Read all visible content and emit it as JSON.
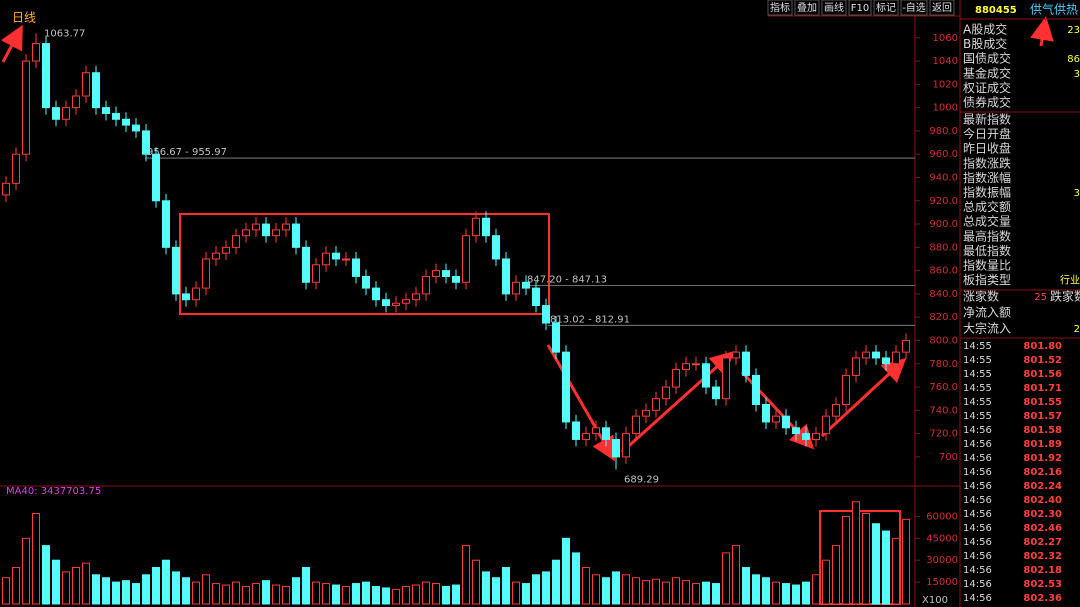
{
  "chart_data": [
    {
      "type": "candlestick",
      "period_label": "日线",
      "open": [
        925,
        935,
        960,
        1040,
        1055,
        1000,
        990,
        1000,
        1010,
        1030,
        1000,
        995,
        990,
        985,
        980,
        960,
        920,
        880,
        840,
        835,
        845,
        870,
        875,
        880,
        890,
        895,
        900,
        890,
        895,
        900,
        880,
        850,
        865,
        875,
        870,
        870,
        855,
        845,
        835,
        830,
        832,
        835,
        840,
        855,
        860,
        855,
        850,
        890,
        905,
        890,
        870,
        840,
        850,
        845,
        830,
        815,
        790,
        730,
        715,
        720,
        725,
        715,
        700,
        720,
        735,
        740,
        750,
        760,
        775,
        780,
        780,
        760,
        750,
        785,
        790,
        770,
        745,
        730,
        735,
        725,
        720,
        715,
        720,
        735,
        745,
        770,
        785,
        790,
        785,
        780,
        790
      ],
      "high": [
        941,
        966,
        1046,
        1063.77,
        1061,
        1006,
        1006,
        1016,
        1036,
        1036,
        1006,
        1001,
        996,
        991,
        986,
        966,
        926,
        886,
        846,
        851,
        876,
        881,
        886,
        896,
        901,
        906,
        906,
        901,
        906,
        906,
        886,
        871,
        881,
        881,
        876,
        876,
        861,
        851,
        841,
        838,
        841,
        846,
        861,
        866,
        866,
        861,
        896,
        911,
        911,
        896,
        876,
        856,
        856,
        851,
        836,
        821,
        796,
        736,
        726,
        731,
        731,
        721,
        726,
        741,
        746,
        756,
        766,
        781,
        786,
        786,
        786,
        766,
        791,
        796,
        796,
        776,
        751,
        741,
        741,
        731,
        726,
        726,
        741,
        751,
        776,
        791,
        796,
        796,
        791,
        796,
        806
      ],
      "low": [
        919,
        929,
        954,
        1034,
        994,
        984,
        984,
        994,
        1004,
        994,
        989,
        984,
        979,
        974,
        954,
        914,
        874,
        834,
        829,
        829,
        839,
        864,
        869,
        874,
        884,
        889,
        884,
        884,
        889,
        874,
        844,
        844,
        859,
        864,
        864,
        849,
        839,
        829,
        824,
        824,
        826,
        829,
        834,
        849,
        849,
        844,
        844,
        884,
        884,
        864,
        834,
        834,
        839,
        824,
        809,
        784,
        724,
        709,
        709,
        714,
        709,
        689.29,
        694,
        714,
        729,
        734,
        744,
        754,
        769,
        774,
        754,
        744,
        744,
        779,
        764,
        739,
        724,
        724,
        719,
        714,
        709,
        709,
        714,
        729,
        739,
        764,
        779,
        779,
        774,
        774,
        784
      ],
      "close": [
        935,
        960,
        1040,
        1055,
        1000,
        990,
        1000,
        1010,
        1030,
        1000,
        995,
        990,
        985,
        980,
        960,
        920,
        880,
        840,
        835,
        845,
        870,
        875,
        880,
        890,
        895,
        900,
        890,
        895,
        900,
        880,
        850,
        865,
        875,
        870,
        870,
        855,
        845,
        835,
        830,
        832,
        835,
        840,
        855,
        860,
        855,
        850,
        890,
        905,
        890,
        870,
        840,
        850,
        845,
        830,
        815,
        790,
        730,
        715,
        720,
        725,
        715,
        700,
        720,
        735,
        740,
        750,
        760,
        775,
        780,
        780,
        760,
        750,
        785,
        790,
        770,
        745,
        730,
        735,
        725,
        720,
        715,
        720,
        735,
        745,
        770,
        785,
        790,
        785,
        780,
        790,
        800
      ],
      "up_color": "#ff3c3c",
      "down_color": "#54fcfc",
      "ylim": [
        675,
        1077
      ],
      "yticks": [
        700,
        {
          "value": 720,
          "label": "720.0"
        },
        {
          "value": 740,
          "label": "740.0"
        },
        {
          "value": 760,
          "label": "760.0"
        },
        {
          "value": 780,
          "label": "780.0"
        },
        {
          "value": 800,
          "label": "800.0"
        },
        {
          "value": 820,
          "label": "820.0"
        },
        {
          "value": 840,
          "label": "840.0"
        },
        {
          "value": 860,
          "label": "860.0"
        },
        {
          "value": 880,
          "label": "880.0"
        },
        {
          "value": 900,
          "label": "900.0"
        },
        {
          "value": 920,
          "label": "920.0"
        },
        {
          "value": 940,
          "label": "940.0"
        },
        {
          "value": 960,
          "label": "960.0"
        },
        {
          "value": 980,
          "label": "980.0"
        },
        1000,
        1020,
        1040,
        1060
      ],
      "ref_lines": [
        {
          "value": 956.67,
          "label": "956.67 - 955.97"
        },
        {
          "value": 847.2,
          "label": "847.20 - 847.13"
        },
        {
          "value": 813.02,
          "label": "813.02 - 812.91"
        }
      ],
      "grid": false
    },
    {
      "type": "bar",
      "ma_label": "MA40: 3437703.75",
      "unit_label": "X100",
      "values": [
        18000,
        25000,
        45000,
        62000,
        40000,
        30000,
        22000,
        25000,
        28000,
        20000,
        18000,
        15000,
        16000,
        14000,
        20000,
        25000,
        30000,
        22000,
        18000,
        15000,
        20000,
        14000,
        13000,
        15000,
        12000,
        14000,
        16000,
        13000,
        12000,
        18000,
        25000,
        15000,
        14000,
        13000,
        12000,
        14000,
        15000,
        12000,
        11000,
        10000,
        12000,
        13000,
        15000,
        14000,
        12000,
        13000,
        40000,
        30000,
        22000,
        18000,
        25000,
        15000,
        14000,
        20000,
        22000,
        30000,
        45000,
        35000,
        25000,
        20000,
        18000,
        22000,
        20000,
        18000,
        16000,
        17000,
        15000,
        18000,
        16000,
        14000,
        15000,
        14000,
        35000,
        40000,
        25000,
        20000,
        18000,
        15000,
        14000,
        13000,
        15000,
        20000,
        30000,
        40000,
        60000,
        70000,
        62000,
        55000,
        50000,
        45000,
        58000
      ],
      "ylim": [
        0,
        74000
      ],
      "yticks": [
        15000,
        30000,
        45000,
        60000
      ],
      "grid": false
    }
  ],
  "toolbar": [
    "指标",
    "叠加",
    "画线",
    "F10",
    "标记",
    "-自选",
    "返回"
  ],
  "side_panel": {
    "code": "880455",
    "name": "供气供热",
    "rows": [
      {
        "label": "A股成交",
        "value": "23"
      },
      {
        "label": "B股成交"
      },
      {
        "label": "国债成交",
        "value": "86"
      },
      {
        "label": "基金成交",
        "value": "3"
      },
      {
        "label": "权证成交"
      },
      {
        "label": "债券成交"
      },
      {
        "label": "最新指数"
      },
      {
        "label": "今日开盘"
      },
      {
        "label": "昨日收盘"
      },
      {
        "label": "指数涨跌"
      },
      {
        "label": "指数涨幅"
      },
      {
        "label": "指数振幅",
        "value": "3"
      },
      {
        "label": "总成交额"
      },
      {
        "label": "总成交量"
      },
      {
        "label": "最高指数"
      },
      {
        "label": "最低指数"
      },
      {
        "label": "指数量比"
      },
      {
        "label": "板指类型",
        "value": "行业"
      },
      {
        "label": "涨家数",
        "value": "25",
        "label2": "跌家数"
      },
      {
        "label": "净流入额"
      },
      {
        "label": "大宗流入",
        "value": "2"
      }
    ],
    "ticks": [
      {
        "time": "14:55",
        "price": "801.80"
      },
      {
        "time": "14:55",
        "price": "801.52"
      },
      {
        "time": "14:55",
        "price": "801.56"
      },
      {
        "time": "14:55",
        "price": "801.71"
      },
      {
        "time": "14:55",
        "price": "801.55"
      },
      {
        "time": "14:55",
        "price": "801.57"
      },
      {
        "time": "14:56",
        "price": "801.58"
      },
      {
        "time": "14:56",
        "price": "801.89"
      },
      {
        "time": "14:56",
        "price": "801.92"
      },
      {
        "time": "14:56",
        "price": "802.16"
      },
      {
        "time": "14:56",
        "price": "802.24"
      },
      {
        "time": "14:56",
        "price": "802.40"
      },
      {
        "time": "14:56",
        "price": "802.30"
      },
      {
        "time": "14:56",
        "price": "802.46"
      },
      {
        "time": "14:56",
        "price": "802.27"
      },
      {
        "time": "14:56",
        "price": "802.32"
      },
      {
        "time": "14:56",
        "price": "802.18"
      },
      {
        "time": "14:56",
        "price": "802.53"
      },
      {
        "time": "14:56",
        "price": "802.36"
      }
    ]
  }
}
